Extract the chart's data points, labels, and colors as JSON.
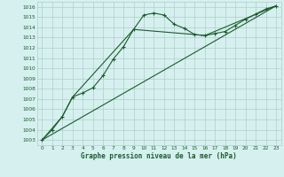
{
  "title": "Graphe pression niveau de la mer (hPa)",
  "bg_color": "#d6f0f0",
  "plot_bg_color": "#d6f0f0",
  "grid_color": "#b0cec8",
  "line_color": "#1a5c2a",
  "xlim": [
    -0.5,
    23.5
  ],
  "ylim": [
    1002.5,
    1016.5
  ],
  "xticks": [
    0,
    1,
    2,
    3,
    4,
    5,
    6,
    7,
    8,
    9,
    10,
    11,
    12,
    13,
    14,
    15,
    16,
    17,
    18,
    19,
    20,
    21,
    22,
    23
  ],
  "yticks": [
    1003,
    1004,
    1005,
    1006,
    1007,
    1008,
    1009,
    1010,
    1011,
    1012,
    1013,
    1014,
    1015,
    1016
  ],
  "series1_x": [
    0,
    1,
    2,
    3,
    4,
    5,
    6,
    7,
    8,
    9,
    10,
    11,
    12,
    13,
    14,
    15,
    16,
    17,
    18,
    19,
    20,
    21,
    22,
    23
  ],
  "series1_y": [
    1003.0,
    1004.0,
    1005.3,
    1007.2,
    1007.6,
    1008.1,
    1009.3,
    1010.9,
    1012.1,
    1013.8,
    1015.2,
    1015.4,
    1015.2,
    1014.3,
    1013.9,
    1013.3,
    1013.2,
    1013.4,
    1013.6,
    1014.2,
    1014.8,
    1015.3,
    1015.8,
    1016.1
  ],
  "series2_x": [
    0,
    23
  ],
  "series2_y": [
    1003.0,
    1016.1
  ],
  "series3_x": [
    0,
    2,
    3,
    9,
    15,
    16,
    23
  ],
  "series3_y": [
    1003.0,
    1005.3,
    1007.2,
    1013.8,
    1013.3,
    1013.2,
    1016.1
  ]
}
